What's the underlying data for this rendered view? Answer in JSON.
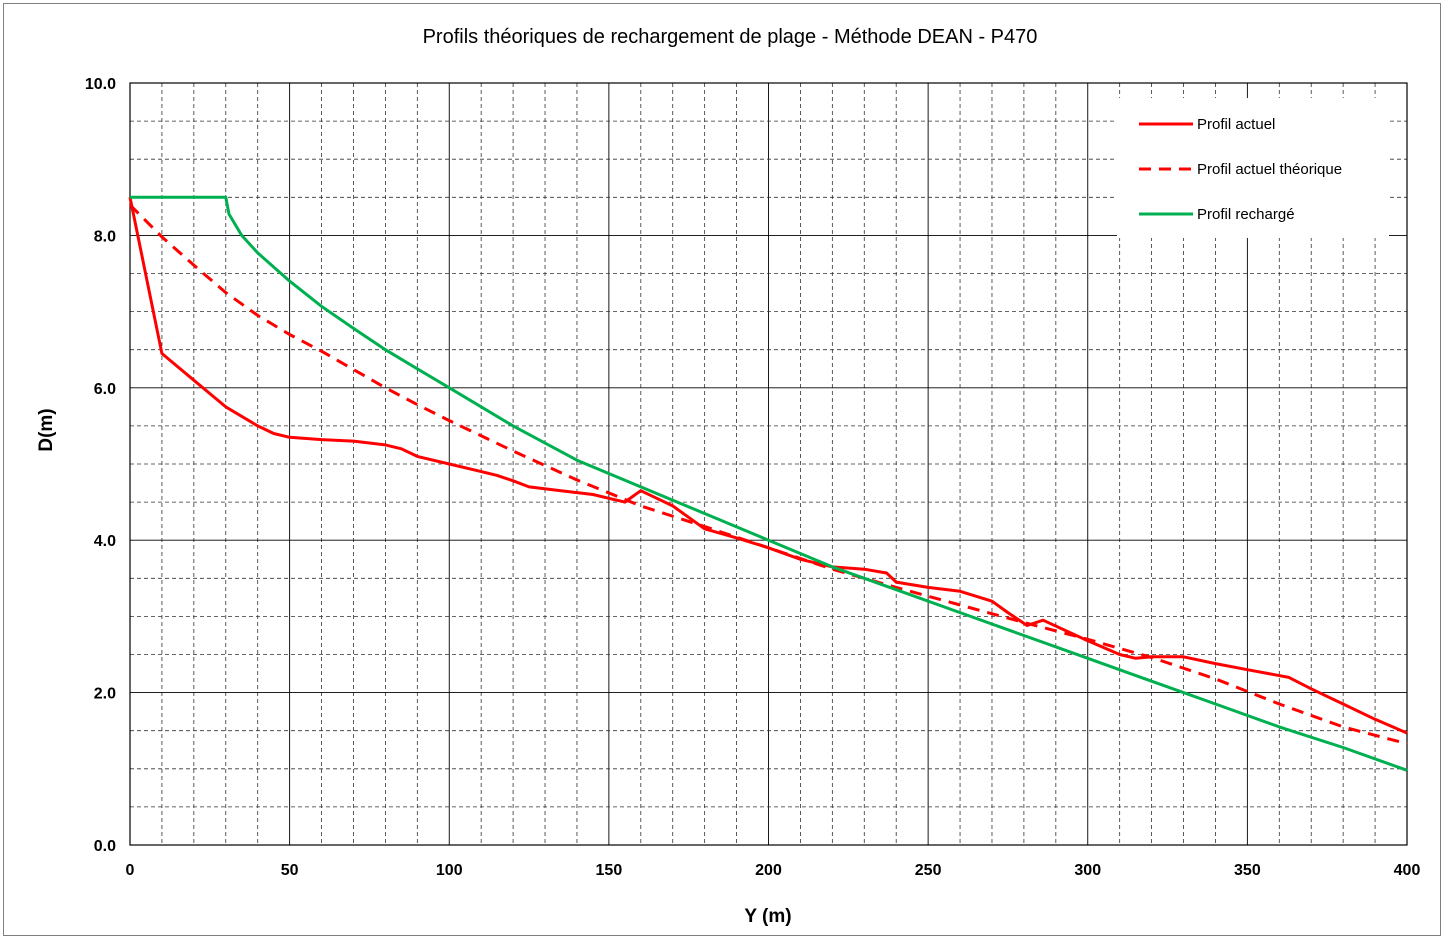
{
  "chart_data": {
    "type": "line",
    "title": "Profils théoriques de rechargement de plage - Méthode DEAN - P470",
    "xlabel": "Y  (m)",
    "ylabel": "D(m)",
    "xlim": [
      0,
      400
    ],
    "ylim": [
      0,
      10
    ],
    "x_ticks": [
      "0",
      "50",
      "100",
      "150",
      "200",
      "250",
      "300",
      "350",
      "400"
    ],
    "y_ticks": [
      "0.0",
      "2.0",
      "4.0",
      "6.0",
      "8.0",
      "10.0"
    ],
    "grid": "on",
    "legend_position": "top-right",
    "series": [
      {
        "name": "Profil actuel",
        "color": "#ff0000",
        "style": "solid",
        "points": [
          [
            0,
            8.5
          ],
          [
            10,
            6.45
          ],
          [
            20,
            6.1
          ],
          [
            30,
            5.75
          ],
          [
            40,
            5.5
          ],
          [
            45,
            5.4
          ],
          [
            50,
            5.35
          ],
          [
            60,
            5.32
          ],
          [
            70,
            5.3
          ],
          [
            80,
            5.25
          ],
          [
            85,
            5.2
          ],
          [
            90,
            5.1
          ],
          [
            100,
            5.0
          ],
          [
            110,
            4.9
          ],
          [
            115,
            4.85
          ],
          [
            120,
            4.78
          ],
          [
            125,
            4.7
          ],
          [
            135,
            4.65
          ],
          [
            145,
            4.6
          ],
          [
            150,
            4.55
          ],
          [
            155,
            4.5
          ],
          [
            160,
            4.65
          ],
          [
            165,
            4.55
          ],
          [
            170,
            4.45
          ],
          [
            180,
            4.15
          ],
          [
            190,
            4.03
          ],
          [
            200,
            3.9
          ],
          [
            210,
            3.75
          ],
          [
            220,
            3.65
          ],
          [
            230,
            3.62
          ],
          [
            237,
            3.57
          ],
          [
            240,
            3.45
          ],
          [
            250,
            3.38
          ],
          [
            260,
            3.33
          ],
          [
            270,
            3.2
          ],
          [
            275,
            3.05
          ],
          [
            281,
            2.88
          ],
          [
            286,
            2.95
          ],
          [
            300,
            2.68
          ],
          [
            310,
            2.5
          ],
          [
            315,
            2.45
          ],
          [
            320,
            2.47
          ],
          [
            330,
            2.47
          ],
          [
            340,
            2.38
          ],
          [
            350,
            2.3
          ],
          [
            363,
            2.2
          ],
          [
            370,
            2.05
          ],
          [
            380,
            1.85
          ],
          [
            390,
            1.65
          ],
          [
            400,
            1.47
          ]
        ]
      },
      {
        "name": "Profil actuel théorique",
        "color": "#ff0000",
        "style": "dashed",
        "points": [
          [
            0,
            8.4
          ],
          [
            10,
            7.98
          ],
          [
            20,
            7.61
          ],
          [
            30,
            7.25
          ],
          [
            40,
            6.95
          ],
          [
            50,
            6.7
          ],
          [
            60,
            6.48
          ],
          [
            70,
            6.24
          ],
          [
            80,
            6.0
          ],
          [
            90,
            5.78
          ],
          [
            100,
            5.57
          ],
          [
            120,
            5.17
          ],
          [
            140,
            4.79
          ],
          [
            160,
            4.45
          ],
          [
            180,
            4.18
          ],
          [
            200,
            3.9
          ],
          [
            220,
            3.62
          ],
          [
            240,
            3.38
          ],
          [
            260,
            3.15
          ],
          [
            280,
            2.92
          ],
          [
            300,
            2.7
          ],
          [
            320,
            2.46
          ],
          [
            340,
            2.18
          ],
          [
            360,
            1.85
          ],
          [
            380,
            1.55
          ],
          [
            400,
            1.33
          ]
        ]
      },
      {
        "name": "Profil rechargé",
        "color": "#00b050",
        "style": "solid",
        "points": [
          [
            0,
            8.5
          ],
          [
            30,
            8.5
          ],
          [
            31,
            8.28
          ],
          [
            35,
            8.0
          ],
          [
            40,
            7.77
          ],
          [
            50,
            7.4
          ],
          [
            60,
            7.07
          ],
          [
            70,
            6.78
          ],
          [
            80,
            6.5
          ],
          [
            90,
            6.25
          ],
          [
            100,
            6.0
          ],
          [
            120,
            5.5
          ],
          [
            140,
            5.05
          ],
          [
            160,
            4.7
          ],
          [
            180,
            4.35
          ],
          [
            200,
            4.0
          ],
          [
            220,
            3.65
          ],
          [
            240,
            3.35
          ],
          [
            260,
            3.05
          ],
          [
            280,
            2.75
          ],
          [
            300,
            2.45
          ],
          [
            320,
            2.15
          ],
          [
            340,
            1.85
          ],
          [
            360,
            1.55
          ],
          [
            380,
            1.28
          ],
          [
            400,
            0.98
          ]
        ]
      }
    ]
  }
}
